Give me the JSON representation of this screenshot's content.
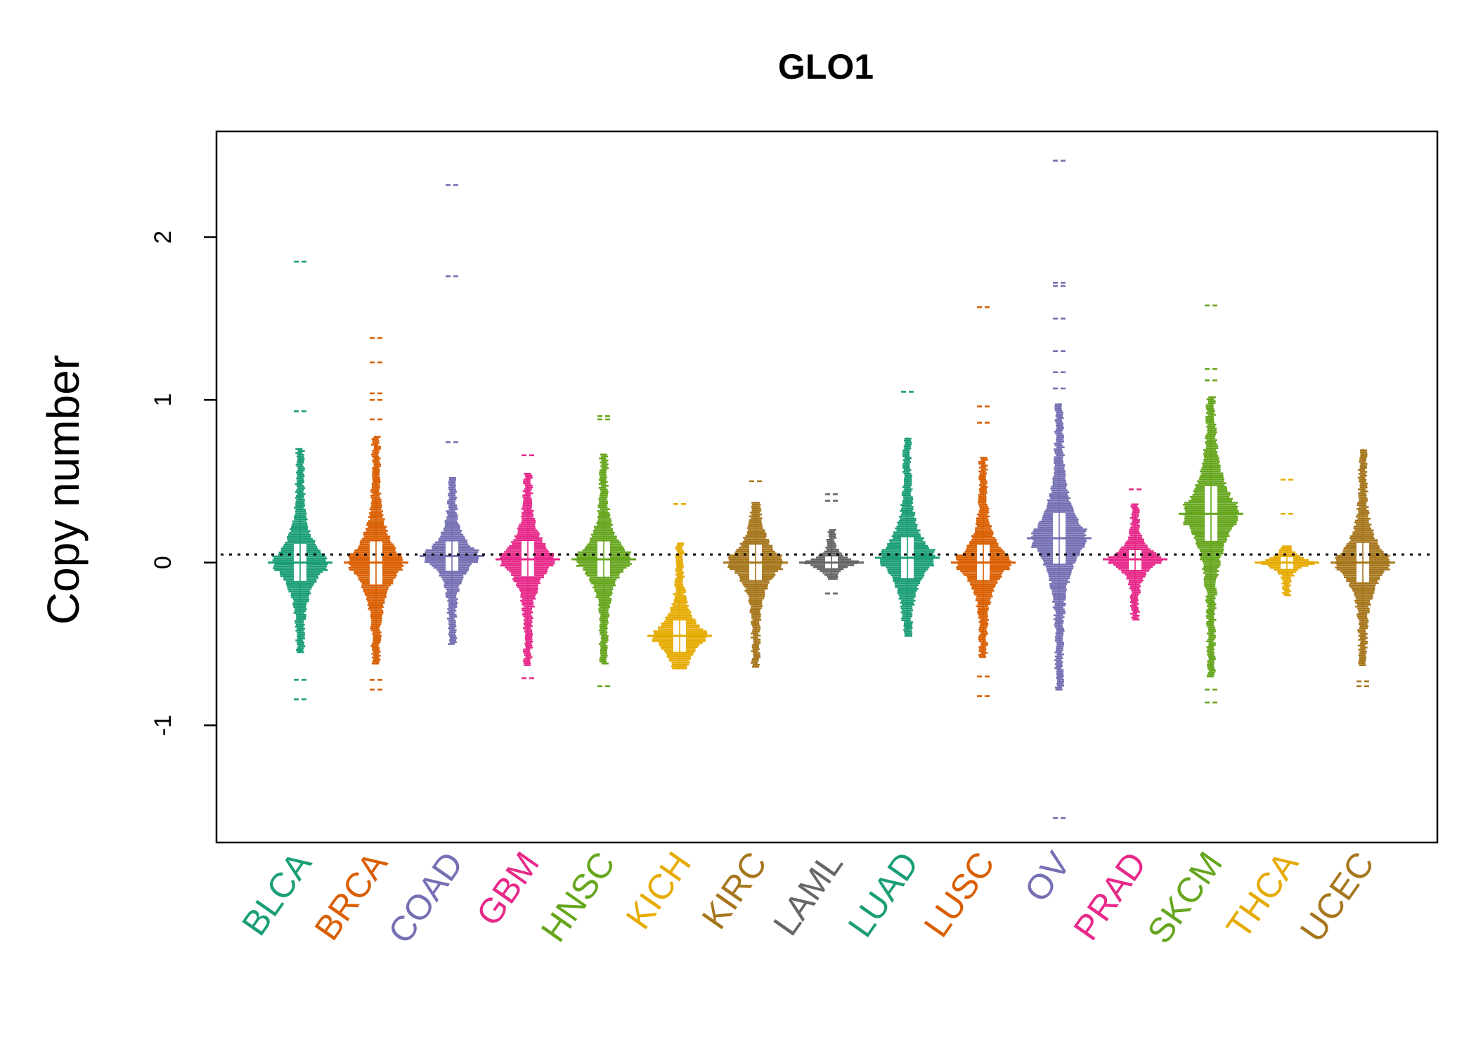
{
  "chart_data": {
    "type": "beeswarm",
    "title": "GLO1",
    "xlabel": "",
    "ylabel": "Copy number",
    "ylim": [
      -1.72,
      2.65
    ],
    "yticks": [
      -1,
      0,
      1,
      2
    ],
    "ytick_labels": [
      "-1",
      "0",
      "1",
      "2"
    ],
    "reference_line": 0.05,
    "grid": false,
    "legend": "none",
    "categories": [
      {
        "name": "BLCA",
        "color": "#1b9e77",
        "min": -0.84,
        "max": 1.85,
        "center": 0.0,
        "core": [
          -0.55,
          0.7
        ],
        "outliers": [
          1.85,
          0.93,
          -0.72,
          -0.84
        ]
      },
      {
        "name": "BRCA",
        "color": "#d95f02",
        "min": -0.78,
        "max": 1.38,
        "center": 0.0,
        "core": [
          -0.62,
          0.78
        ],
        "outliers": [
          1.38,
          1.23,
          1.04,
          1.0,
          0.88,
          -0.72,
          -0.78
        ]
      },
      {
        "name": "COAD",
        "color": "#7570b3",
        "min": -0.53,
        "max": 2.32,
        "center": 0.04,
        "core": [
          -0.5,
          0.52
        ],
        "outliers": [
          2.32,
          1.76,
          0.74
        ]
      },
      {
        "name": "GBM",
        "color": "#e7298a",
        "min": -0.71,
        "max": 0.66,
        "center": 0.02,
        "core": [
          -0.63,
          0.55
        ],
        "outliers": [
          0.66,
          -0.71
        ]
      },
      {
        "name": "HNSC",
        "color": "#66a61e",
        "min": -0.76,
        "max": 0.9,
        "center": 0.02,
        "core": [
          -0.62,
          0.67
        ],
        "outliers": [
          0.9,
          0.88,
          -0.76
        ]
      },
      {
        "name": "KICH",
        "color": "#e6ab02",
        "min": -0.69,
        "max": 0.36,
        "center": -0.45,
        "core": [
          -0.65,
          0.12
        ],
        "outliers": [
          0.36
        ]
      },
      {
        "name": "KIRC",
        "color": "#a6761d",
        "min": -0.67,
        "max": 0.5,
        "center": 0.0,
        "core": [
          -0.64,
          0.37
        ],
        "outliers": [
          0.5
        ]
      },
      {
        "name": "LAML",
        "color": "#666666",
        "min": -0.19,
        "max": 0.42,
        "center": 0.0,
        "core": [
          -0.1,
          0.2
        ],
        "outliers": [
          0.42,
          0.38,
          -0.19
        ]
      },
      {
        "name": "LUAD",
        "color": "#1b9e77",
        "min": -0.47,
        "max": 1.05,
        "center": 0.03,
        "core": [
          -0.45,
          0.77
        ],
        "outliers": [
          1.05
        ]
      },
      {
        "name": "LUSC",
        "color": "#d95f02",
        "min": -0.82,
        "max": 1.57,
        "center": 0.0,
        "core": [
          -0.58,
          0.65
        ],
        "outliers": [
          1.57,
          0.96,
          0.86,
          -0.7,
          -0.82
        ]
      },
      {
        "name": "OV",
        "color": "#7570b3",
        "min": -1.57,
        "max": 2.47,
        "center": 0.15,
        "core": [
          -0.78,
          0.98
        ],
        "outliers": [
          2.47,
          1.72,
          1.7,
          1.5,
          1.3,
          1.17,
          1.07,
          -1.57
        ]
      },
      {
        "name": "PRAD",
        "color": "#e7298a",
        "min": -0.41,
        "max": 0.45,
        "center": 0.02,
        "core": [
          -0.35,
          0.36
        ],
        "outliers": [
          0.45
        ]
      },
      {
        "name": "SKCM",
        "color": "#66a61e",
        "min": -0.86,
        "max": 1.58,
        "center": 0.3,
        "core": [
          -0.7,
          1.02
        ],
        "outliers": [
          1.58,
          1.19,
          1.12,
          -0.78,
          -0.86
        ]
      },
      {
        "name": "THCA",
        "color": "#e6ab02",
        "min": -0.21,
        "max": 0.51,
        "center": 0.0,
        "core": [
          -0.2,
          0.1
        ],
        "outliers": [
          0.51,
          0.3
        ]
      },
      {
        "name": "UCEC",
        "color": "#a6761d",
        "min": -0.76,
        "max": 0.7,
        "center": 0.0,
        "core": [
          -0.63,
          0.7
        ],
        "outliers": [
          -0.73,
          -0.76
        ]
      }
    ]
  }
}
